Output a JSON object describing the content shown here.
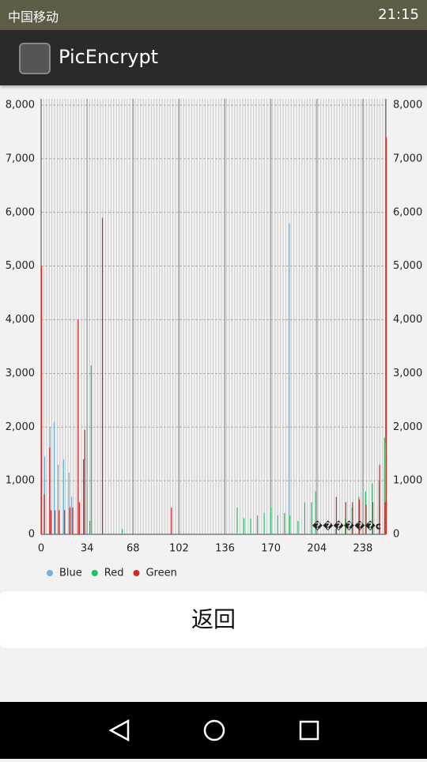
{
  "status_bar": {
    "carrier": "中国移动",
    "time": "21:15"
  },
  "app_bar": {
    "title": "PicEncrypt"
  },
  "chart_data": {
    "type": "bar",
    "description": "������c",
    "x": [
      0,
      2,
      3,
      6,
      7,
      10,
      13,
      17,
      21,
      23,
      27,
      28,
      31,
      32,
      36,
      37,
      45,
      60,
      96,
      145,
      150,
      155,
      160,
      165,
      170,
      175,
      180,
      184,
      190,
      195,
      200,
      203,
      218,
      225,
      230,
      235,
      240,
      245,
      250,
      254,
      255
    ],
    "series": [
      {
        "name": "Blue",
        "color": "#6fb3dc",
        "values": [
          0,
          0,
          1450,
          0,
          2000,
          2100,
          1300,
          1400,
          1150,
          700,
          0,
          0,
          0,
          0,
          0,
          0,
          0,
          0,
          0,
          0,
          0,
          0,
          0,
          0,
          0,
          0,
          0,
          5800,
          0,
          0,
          0,
          0,
          0,
          0,
          0,
          0,
          0,
          0,
          0,
          0,
          0
        ]
      },
      {
        "name": "Red",
        "color": "#22c064",
        "values": [
          0,
          0,
          0,
          0,
          0,
          0,
          0,
          0,
          0,
          0,
          0,
          0,
          0,
          0,
          250,
          3150,
          0,
          100,
          0,
          500,
          300,
          300,
          350,
          400,
          500,
          350,
          400,
          350,
          250,
          600,
          600,
          800,
          100,
          300,
          500,
          700,
          800,
          950,
          1000,
          1800,
          1700
        ]
      },
      {
        "name": "Green",
        "color": "#d42a26",
        "values": [
          5000,
          750,
          0,
          1620,
          450,
          450,
          450,
          450,
          500,
          500,
          4000,
          600,
          1400,
          1950,
          0,
          0,
          5900,
          0,
          500,
          0,
          0,
          0,
          0,
          0,
          0,
          0,
          0,
          0,
          0,
          0,
          0,
          0,
          700,
          600,
          600,
          650,
          550,
          600,
          1300,
          600,
          7400
        ]
      }
    ],
    "xlim": [
      0,
      255
    ],
    "xticks": [
      0,
      34,
      68,
      102,
      136,
      170,
      204,
      238
    ],
    "ylim": [
      0,
      8000
    ],
    "yticks": [
      0,
      {
        "value": 1000,
        "label": "1,000"
      },
      {
        "value": 2000,
        "label": "2,000"
      },
      {
        "value": 3000,
        "label": "3,000"
      },
      {
        "value": 4000,
        "label": "4,000"
      },
      {
        "value": 5000,
        "label": "5,000"
      },
      {
        "value": 6000,
        "label": "6,000"
      },
      {
        "value": 7000,
        "label": "7,000"
      },
      {
        "value": 8000,
        "label": "8,000"
      }
    ],
    "grid": true,
    "legend": "bottom-left"
  },
  "button": {
    "label": "返回"
  }
}
